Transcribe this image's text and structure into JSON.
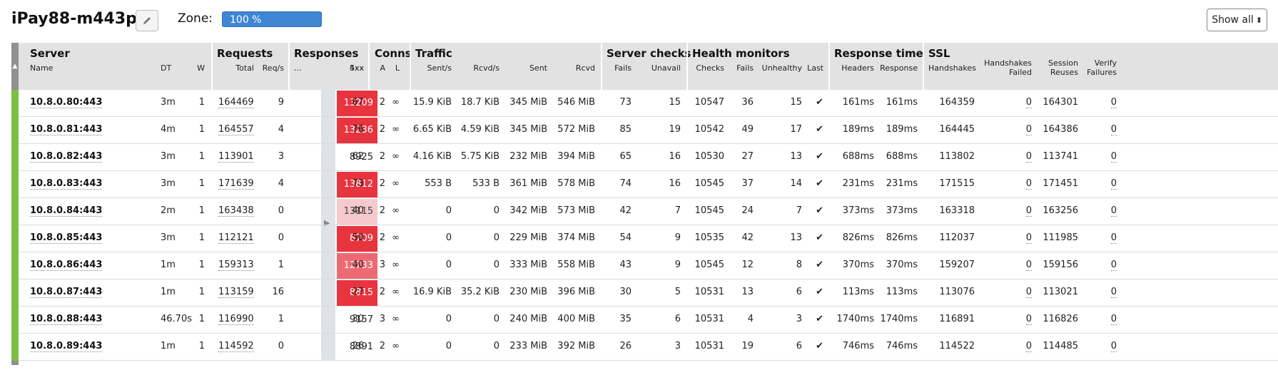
{
  "header": {
    "title": "iPay88-m443p",
    "zone_label": "Zone:",
    "zone_value": "100 %",
    "show_all": "Show all"
  },
  "groups": {
    "server": "Server",
    "requests": "Requests",
    "responses": "Responses",
    "conns": "Conns",
    "traffic": "Traffic",
    "server_checks": "Server checks",
    "health": "Health monitors",
    "response_time": "Response time",
    "ssl": "SSL"
  },
  "subs": {
    "name": "Name",
    "dt": "DT",
    "w": "W",
    "total": "Total",
    "reqs": "Req/s",
    "dots": "...",
    "r4xx": "4xx",
    "r5xx": "5xx",
    "a": "A",
    "l": "L",
    "sent_s": "Sent/s",
    "rcvd_s": "Rcvd/s",
    "sent": "Sent",
    "rcvd": "Rcvd",
    "fails": "Fails",
    "unavail": "Unavail",
    "checks": "Checks",
    "hfails": "Fails",
    "unhealthy": "Unhealthy",
    "last": "Last",
    "headers": "Headers",
    "response": "Response",
    "handshakes": "Handshakes",
    "hs_failed_1": "Handshakes",
    "hs_failed_2": "Failed",
    "sess_1": "Session",
    "sess_2": "Reuses",
    "verify_1": "Verify",
    "verify_2": "Failures"
  },
  "colors": {
    "status_up": "#7ac143",
    "err_high": "#e8343f",
    "err_mid": "#ee6a72",
    "err_low": "#f6c9cc"
  },
  "rows": [
    {
      "name": "10.8.0.80:443",
      "dt": "3m",
      "w": "1",
      "total": "164469",
      "reqs": "9",
      "r4xx": "13209",
      "level": "high",
      "r5xx": "67",
      "a": "2",
      "l": "∞",
      "sent_s": "15.9 KiB",
      "rcvd_s": "18.7 KiB",
      "sent": "345 MiB",
      "rcvd": "546 MiB",
      "fails": "73",
      "unavail": "15",
      "checks": "10547",
      "hfails": "36",
      "unhealthy": "15",
      "last": "✔",
      "headers": "161ms",
      "response": "161ms",
      "handshakes": "164359",
      "hs_failed": "0",
      "reuses": "164301",
      "verify": "0"
    },
    {
      "name": "10.8.0.81:443",
      "dt": "4m",
      "w": "1",
      "total": "164557",
      "reqs": "4",
      "r4xx": "13236",
      "level": "high",
      "r5xx": "76",
      "a": "2",
      "l": "∞",
      "sent_s": "6.65 KiB",
      "rcvd_s": "4.59 KiB",
      "sent": "345 MiB",
      "rcvd": "572 MiB",
      "fails": "85",
      "unavail": "19",
      "checks": "10542",
      "hfails": "49",
      "unhealthy": "17",
      "last": "✔",
      "headers": "189ms",
      "response": "189ms",
      "handshakes": "164445",
      "hs_failed": "0",
      "reuses": "164386",
      "verify": "0"
    },
    {
      "name": "10.8.0.82:443",
      "dt": "3m",
      "w": "1",
      "total": "113901",
      "reqs": "3",
      "r4xx": "8925",
      "level": "none",
      "r5xx": "62",
      "a": "2",
      "l": "∞",
      "sent_s": "4.16 KiB",
      "rcvd_s": "5.75 KiB",
      "sent": "232 MiB",
      "rcvd": "394 MiB",
      "fails": "65",
      "unavail": "16",
      "checks": "10530",
      "hfails": "27",
      "unhealthy": "13",
      "last": "✔",
      "headers": "688ms",
      "response": "688ms",
      "handshakes": "113802",
      "hs_failed": "0",
      "reuses": "113741",
      "verify": "0"
    },
    {
      "name": "10.8.0.83:443",
      "dt": "3m",
      "w": "1",
      "total": "171639",
      "reqs": "4",
      "r4xx": "13812",
      "level": "high",
      "r5xx": "73",
      "a": "2",
      "l": "∞",
      "sent_s": "553 B",
      "rcvd_s": "533 B",
      "sent": "361 MiB",
      "rcvd": "578 MiB",
      "fails": "74",
      "unavail": "16",
      "checks": "10545",
      "hfails": "37",
      "unhealthy": "14",
      "last": "✔",
      "headers": "231ms",
      "response": "231ms",
      "handshakes": "171515",
      "hs_failed": "0",
      "reuses": "171451",
      "verify": "0"
    },
    {
      "name": "10.8.0.84:443",
      "dt": "2m",
      "w": "1",
      "total": "163438",
      "reqs": "0",
      "r4xx": "13115",
      "level": "low",
      "r5xx": "40",
      "a": "2",
      "l": "∞",
      "sent_s": "0",
      "rcvd_s": "0",
      "sent": "342 MiB",
      "rcvd": "573 MiB",
      "fails": "42",
      "unavail": "7",
      "checks": "10545",
      "hfails": "24",
      "unhealthy": "7",
      "last": "✔",
      "headers": "373ms",
      "response": "373ms",
      "handshakes": "163318",
      "hs_failed": "0",
      "reuses": "163256",
      "verify": "0"
    },
    {
      "name": "10.8.0.85:443",
      "dt": "3m",
      "w": "1",
      "total": "112121",
      "reqs": "0",
      "r4xx": "8709",
      "level": "high",
      "r5xx": "50",
      "a": "2",
      "l": "∞",
      "sent_s": "0",
      "rcvd_s": "0",
      "sent": "229 MiB",
      "rcvd": "374 MiB",
      "fails": "54",
      "unavail": "9",
      "checks": "10535",
      "hfails": "42",
      "unhealthy": "13",
      "last": "✔",
      "headers": "826ms",
      "response": "826ms",
      "handshakes": "112037",
      "hs_failed": "0",
      "reuses": "111985",
      "verify": "0"
    },
    {
      "name": "10.8.0.86:443",
      "dt": "1m",
      "w": "1",
      "total": "159313",
      "reqs": "1",
      "r4xx": "12733",
      "level": "mid",
      "r5xx": "40",
      "a": "3",
      "l": "∞",
      "sent_s": "0",
      "rcvd_s": "0",
      "sent": "333 MiB",
      "rcvd": "558 MiB",
      "fails": "43",
      "unavail": "9",
      "checks": "10545",
      "hfails": "12",
      "unhealthy": "8",
      "last": "✔",
      "headers": "370ms",
      "response": "370ms",
      "handshakes": "159207",
      "hs_failed": "0",
      "reuses": "159156",
      "verify": "0"
    },
    {
      "name": "10.8.0.87:443",
      "dt": "1m",
      "w": "1",
      "total": "113159",
      "reqs": "16",
      "r4xx": "8815",
      "level": "high",
      "r5xx": "27",
      "a": "2",
      "l": "∞",
      "sent_s": "16.9 KiB",
      "rcvd_s": "35.2 KiB",
      "sent": "230 MiB",
      "rcvd": "396 MiB",
      "fails": "30",
      "unavail": "5",
      "checks": "10531",
      "hfails": "13",
      "unhealthy": "6",
      "last": "✔",
      "headers": "113ms",
      "response": "113ms",
      "handshakes": "113076",
      "hs_failed": "0",
      "reuses": "113021",
      "verify": "0"
    },
    {
      "name": "10.8.0.88:443",
      "dt": "46.70s",
      "w": "1",
      "total": "116990",
      "reqs": "1",
      "r4xx": "9157",
      "level": "none",
      "r5xx": "30",
      "a": "3",
      "l": "∞",
      "sent_s": "0",
      "rcvd_s": "0",
      "sent": "240 MiB",
      "rcvd": "400 MiB",
      "fails": "35",
      "unavail": "6",
      "checks": "10531",
      "hfails": "4",
      "unhealthy": "3",
      "last": "✔",
      "headers": "1740ms",
      "response": "1740ms",
      "handshakes": "116891",
      "hs_failed": "0",
      "reuses": "116826",
      "verify": "0"
    },
    {
      "name": "10.8.0.89:443",
      "dt": "1m",
      "w": "1",
      "total": "114592",
      "reqs": "0",
      "r4xx": "8891",
      "level": "none",
      "r5xx": "26",
      "a": "2",
      "l": "∞",
      "sent_s": "0",
      "rcvd_s": "0",
      "sent": "233 MiB",
      "rcvd": "392 MiB",
      "fails": "26",
      "unavail": "3",
      "checks": "10531",
      "hfails": "19",
      "unhealthy": "6",
      "last": "✔",
      "headers": "746ms",
      "response": "746ms",
      "handshakes": "114522",
      "hs_failed": "0",
      "reuses": "114485",
      "verify": "0"
    }
  ]
}
